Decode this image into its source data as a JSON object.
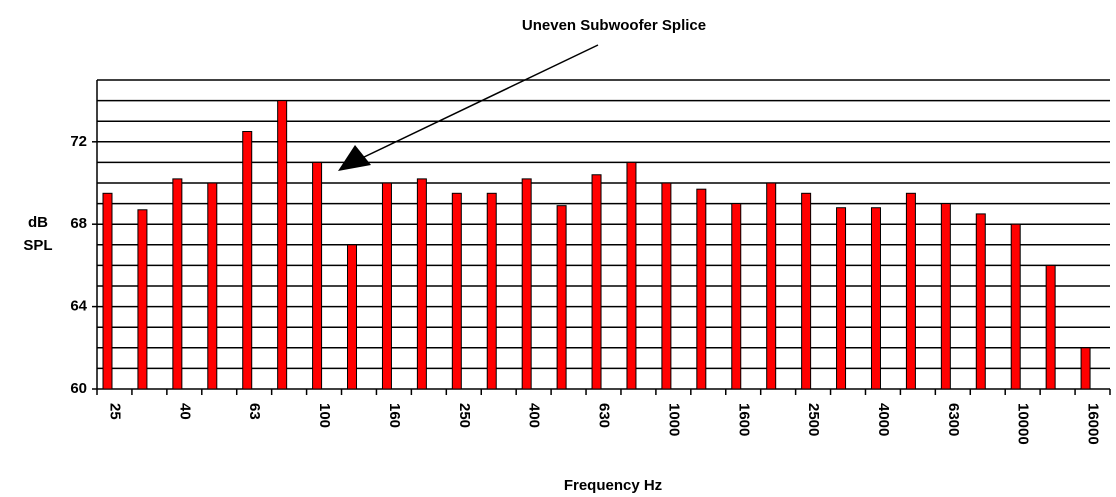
{
  "chart_data": {
    "type": "bar",
    "annotation": "Uneven Subwoofer Splice",
    "xlabel": "Frequency Hz",
    "ylabel": [
      "dB",
      "SPL"
    ],
    "categories": [
      "25",
      null,
      "40",
      null,
      "63",
      null,
      "100",
      null,
      "160",
      null,
      "250",
      null,
      "400",
      null,
      "630",
      null,
      "1000",
      null,
      "1600",
      null,
      "2500",
      null,
      "4000",
      null,
      "6300",
      null,
      "10000",
      null,
      "16000"
    ],
    "values": [
      69.5,
      68.7,
      70.2,
      70,
      72.5,
      74,
      71,
      67,
      70,
      70.2,
      69.5,
      69.5,
      70.2,
      68.9,
      70.4,
      71,
      70,
      69.7,
      69,
      70,
      69.5,
      68.8,
      68.8,
      69.5,
      69,
      68.5,
      68,
      66,
      62
    ],
    "color": "#ff0000",
    "ylim": [
      60,
      75
    ],
    "yticks": [
      60,
      64,
      68,
      72
    ],
    "minor_yticks": [
      61,
      62,
      63,
      65,
      66,
      67,
      69,
      70,
      71,
      73,
      74,
      75
    ],
    "grid": true
  }
}
